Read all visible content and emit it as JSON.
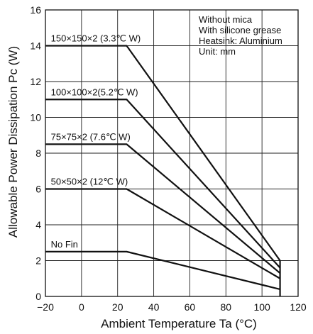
{
  "chart_data": {
    "type": "line",
    "xlabel": "Ambient Temperature Ta (°C)",
    "ylabel": "Allowable Power Dissipation Pc (W)",
    "xlim": [
      -20,
      120
    ],
    "ylim": [
      0,
      16
    ],
    "x_ticks": [
      "−20",
      "0",
      "20",
      "40",
      "60",
      "80",
      "100",
      "120"
    ],
    "y_ticks": [
      "0",
      "2",
      "4",
      "6",
      "8",
      "10",
      "12",
      "14",
      "16"
    ],
    "grid": true,
    "series": [
      {
        "name": "150×150×2 (3.3℃ W)",
        "x": [
          -20,
          25,
          110
        ],
        "y": [
          14,
          14,
          2.0
        ]
      },
      {
        "name": "100×100×2(5.2℃ W)",
        "x": [
          -20,
          25,
          110
        ],
        "y": [
          11,
          11,
          1.6
        ]
      },
      {
        "name": "75×75×2 (7.6℃ W)",
        "x": [
          -20,
          25,
          110
        ],
        "y": [
          8.5,
          8.5,
          1.3
        ]
      },
      {
        "name": "50×50×2 (12℃ W)",
        "x": [
          -20,
          25,
          110
        ],
        "y": [
          6,
          6,
          1.0
        ]
      },
      {
        "name": "No Fin",
        "x": [
          -20,
          25,
          110
        ],
        "y": [
          2.5,
          2.5,
          0.4
        ]
      }
    ],
    "annotations": [
      "Without mica",
      "With silicone grease",
      "Heatsink: Aluminium",
      "Unit: mm"
    ]
  },
  "colors": {
    "line": "#111111",
    "grid": "#222222",
    "background": "#ffffff"
  }
}
